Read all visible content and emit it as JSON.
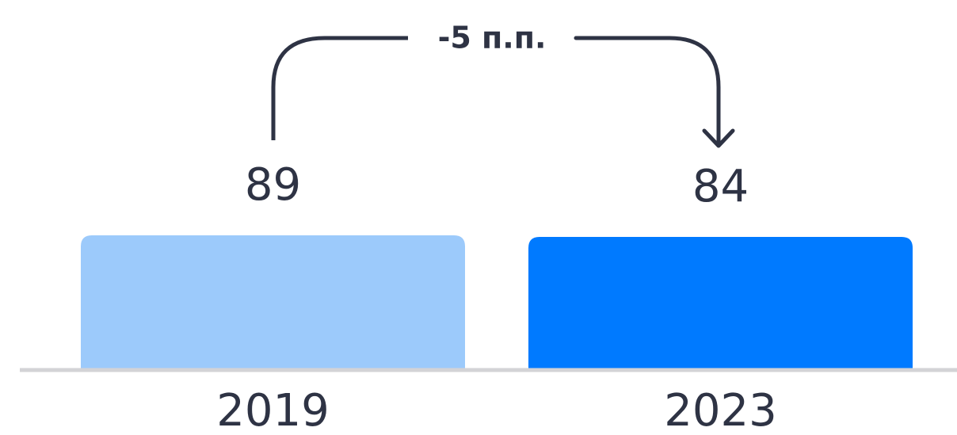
{
  "chart_data": {
    "type": "bar",
    "annotation": "-5 п.п.",
    "categories": [
      "2019",
      "2023"
    ],
    "values": [
      89,
      84
    ],
    "colors": [
      "#9ccafb",
      "#007aff"
    ],
    "ylim": [
      -333,
      89
    ]
  }
}
